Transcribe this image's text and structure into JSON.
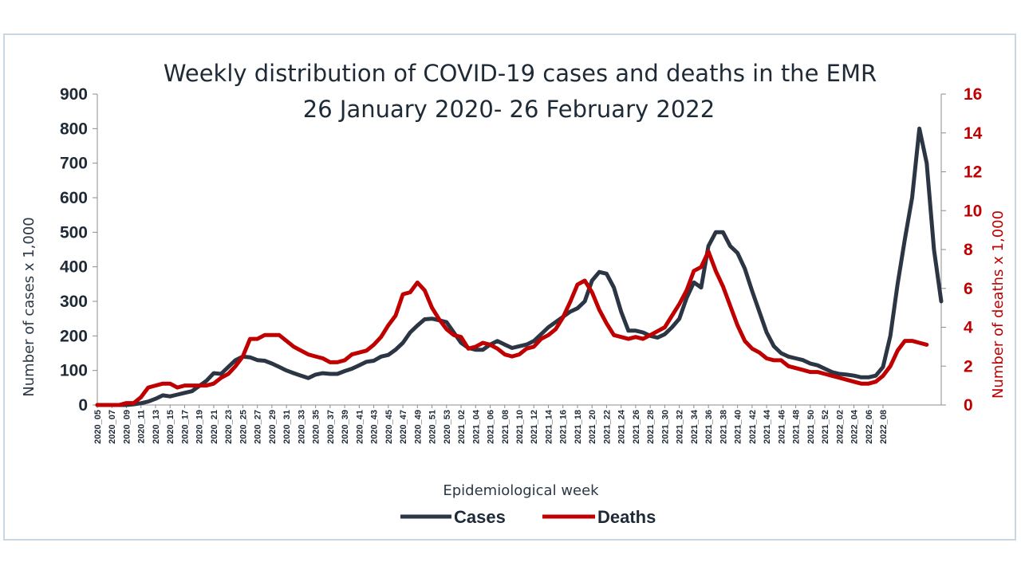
{
  "chart_data": {
    "type": "line",
    "title": "Weekly distribution of COVID-19 cases and deaths in the EMR",
    "subtitle": "26 January 2020- 26 February 2022",
    "xlabel": "Epidemiological week",
    "ylabel": "Number of cases x 1,000",
    "y2label": "Number of deaths x 1,000",
    "ylim": [
      0,
      900
    ],
    "y2lim": [
      0,
      16
    ],
    "yticks": [
      0,
      100,
      200,
      300,
      400,
      500,
      600,
      700,
      800,
      900
    ],
    "y2ticks": [
      0,
      2,
      4,
      6,
      8,
      10,
      12,
      14,
      16
    ],
    "xtick_labels": [
      "2020_05",
      "2020_07",
      "2020_09",
      "2020_11",
      "2020_13",
      "2020_15",
      "2020_17",
      "2020_19",
      "2020_21",
      "2020_23",
      "2020_25",
      "2020_27",
      "2020_29",
      "2020_31",
      "2020_33",
      "2020_35",
      "2020_37",
      "2020_39",
      "2020_41",
      "2020_43",
      "2020_45",
      "2020_47",
      "2020_49",
      "2020_51",
      "2020_53",
      "2021_02",
      "2021_04",
      "2021_06",
      "2021_08",
      "2021_10",
      "2021_12",
      "2021_14",
      "2021_16",
      "2021_18",
      "2021_20",
      "2021_22",
      "2021_24",
      "2021_26",
      "2021_28",
      "2021_30",
      "2021_32",
      "2021_34",
      "2021_36",
      "2021_38",
      "2021_40",
      "2021_42",
      "2021_44",
      "2021_46",
      "2021_48",
      "2021_50",
      "2021_52",
      "2022_02",
      "2022_04",
      "2022_06",
      "2022_08"
    ],
    "legend_position": "bottom",
    "grid": false,
    "series": [
      {
        "name": "Cases",
        "axis": "left",
        "color": "#2b3544",
        "values": [
          0,
          0,
          0,
          0,
          0,
          2,
          5,
          10,
          18,
          28,
          25,
          30,
          35,
          40,
          55,
          70,
          92,
          90,
          110,
          130,
          140,
          138,
          130,
          128,
          120,
          110,
          100,
          92,
          85,
          78,
          88,
          92,
          90,
          90,
          98,
          105,
          115,
          125,
          128,
          140,
          145,
          160,
          180,
          210,
          230,
          248,
          250,
          245,
          240,
          210,
          180,
          165,
          160,
          160,
          175,
          185,
          175,
          165,
          170,
          175,
          185,
          205,
          225,
          240,
          255,
          270,
          280,
          300,
          360,
          385,
          380,
          340,
          270,
          215,
          215,
          210,
          200,
          195,
          205,
          225,
          250,
          310,
          355,
          340,
          460,
          500,
          500,
          460,
          440,
          395,
          330,
          270,
          210,
          170,
          150,
          140,
          135,
          130,
          120,
          115,
          105,
          95,
          90,
          88,
          85,
          80,
          80,
          85,
          110,
          200,
          350,
          480,
          600,
          800,
          700,
          450,
          300
        ]
      },
      {
        "name": "Deaths",
        "axis": "right",
        "color": "#c00000",
        "values": [
          0,
          0,
          0,
          0,
          0.1,
          0.1,
          0.4,
          0.9,
          1.0,
          1.1,
          1.1,
          0.9,
          1.0,
          1.0,
          1.0,
          1.0,
          1.1,
          1.4,
          1.6,
          2.0,
          2.5,
          3.4,
          3.4,
          3.6,
          3.6,
          3.6,
          3.3,
          3.0,
          2.8,
          2.6,
          2.5,
          2.4,
          2.2,
          2.2,
          2.3,
          2.6,
          2.7,
          2.8,
          3.1,
          3.5,
          4.1,
          4.6,
          5.7,
          5.8,
          6.3,
          5.9,
          5.0,
          4.4,
          3.9,
          3.6,
          3.5,
          2.9,
          3.0,
          3.2,
          3.1,
          2.9,
          2.6,
          2.5,
          2.6,
          2.9,
          3.0,
          3.4,
          3.6,
          3.9,
          4.5,
          5.3,
          6.2,
          6.4,
          5.8,
          4.9,
          4.2,
          3.6,
          3.5,
          3.4,
          3.5,
          3.4,
          3.6,
          3.8,
          4.0,
          4.6,
          5.2,
          5.9,
          6.9,
          7.1,
          7.9,
          6.9,
          6.1,
          5.1,
          4.1,
          3.3,
          2.9,
          2.7,
          2.4,
          2.3,
          2.3,
          2.0,
          1.9,
          1.8,
          1.7,
          1.7,
          1.6,
          1.5,
          1.4,
          1.3,
          1.2,
          1.1,
          1.1,
          1.2,
          1.5,
          2.0,
          2.8,
          3.3,
          3.3,
          3.2,
          3.1
        ]
      }
    ]
  }
}
